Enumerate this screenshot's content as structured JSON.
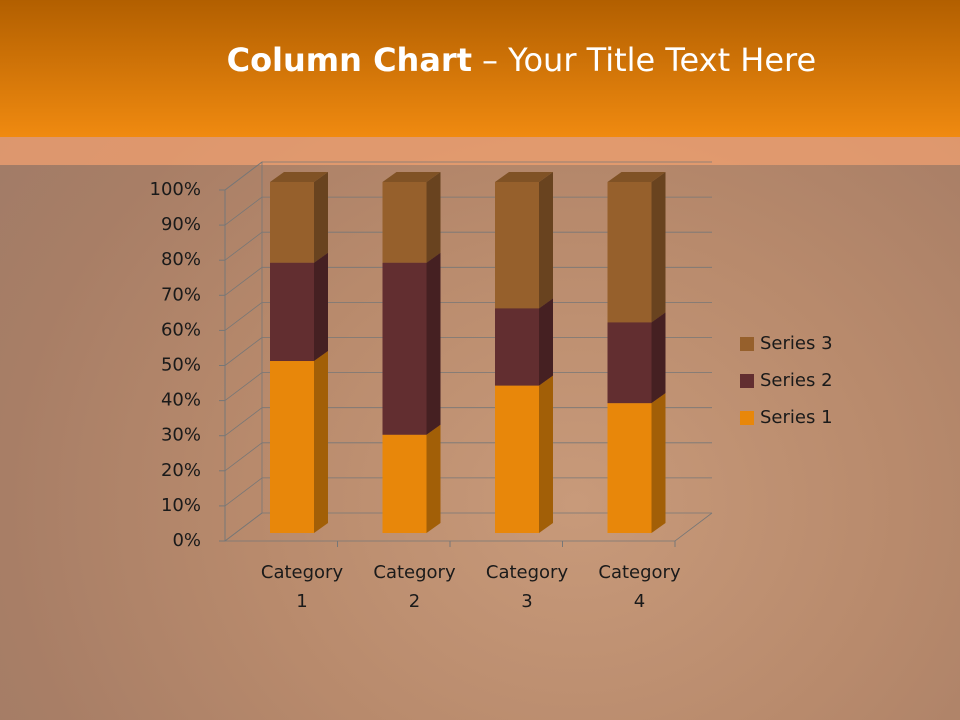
{
  "chart_data": {
    "type": "bar",
    "stacked": true,
    "title": "Column Chart",
    "subtitle": "– Your Title Text Here",
    "categories": [
      "Category 1",
      "Category 2",
      "Category 3",
      "Category 4"
    ],
    "series": [
      {
        "name": "Series 1",
        "color": "#e8870a",
        "values": [
          49,
          28,
          42,
          37
        ]
      },
      {
        "name": "Series 2",
        "color": "#622e30",
        "values": [
          28,
          49,
          22,
          23
        ]
      },
      {
        "name": "Series 3",
        "color": "#96602c",
        "values": [
          23,
          23,
          36,
          40
        ]
      }
    ],
    "ylim": [
      0,
      100
    ],
    "yticks": [
      {
        "value": 0,
        "label": "0%"
      },
      {
        "value": 10,
        "label": "10%"
      },
      {
        "value": 20,
        "label": "20%"
      },
      {
        "value": 30,
        "label": "30%"
      },
      {
        "value": 40,
        "label": "40%"
      },
      {
        "value": 50,
        "label": "50%"
      },
      {
        "value": 60,
        "label": "60%"
      },
      {
        "value": 70,
        "label": "70%"
      },
      {
        "value": 80,
        "label": "80%"
      },
      {
        "value": 90,
        "label": "90%"
      },
      {
        "value": 100,
        "label": "100%"
      }
    ],
    "grid": true,
    "legend": "right"
  }
}
